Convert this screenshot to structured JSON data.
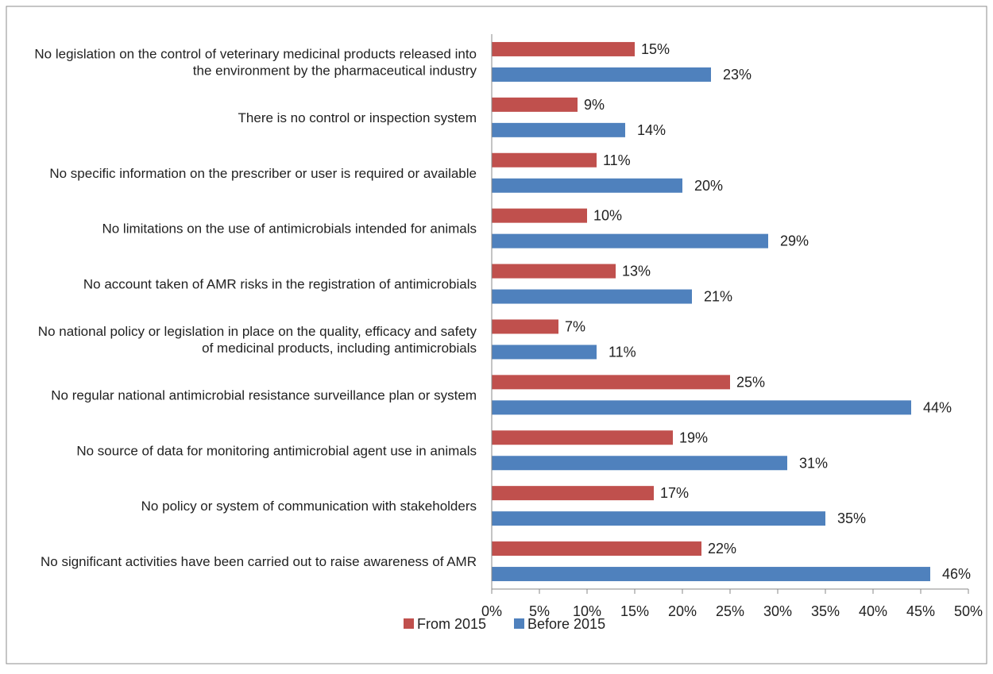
{
  "colors": {
    "from_2015": "#c0504d",
    "before_2015": "#4f81bd",
    "axis": "#888888",
    "frame": "#8c8c8c"
  },
  "chart_data": {
    "type": "bar",
    "orientation": "horizontal",
    "title": "",
    "xlabel": "",
    "ylabel": "",
    "xlim": [
      0,
      50
    ],
    "x_tick_labels": [
      "0%",
      "5%",
      "10%",
      "15%",
      "20%",
      "25%",
      "30%",
      "35%",
      "40%",
      "45%",
      "50%"
    ],
    "grid": false,
    "legend_position": "bottom",
    "categories": [
      [
        "No legislation on the control of veterinary medicinal products released into",
        "the environment by the pharmaceutical industry"
      ],
      [
        "There is no control or inspection system"
      ],
      [
        "No specific information on the prescriber or user is required or available"
      ],
      [
        "No limitations on the use of antimicrobials intended for animals"
      ],
      [
        "No account taken of AMR risks in the registration of antimicrobials"
      ],
      [
        "No national policy or legislation in place on the quality, efficacy and safety",
        "of medicinal products, including antimicrobials"
      ],
      [
        "No regular national antimicrobial resistance surveillance plan or system"
      ],
      [
        "No source of data for monitoring antimicrobial agent use in animals"
      ],
      [
        "No policy or system of communication with stakeholders"
      ],
      [
        "No significant activities have been carried out to raise awareness of AMR"
      ]
    ],
    "series": [
      {
        "name": "From 2015",
        "values": [
          15,
          9,
          11,
          10,
          13,
          7,
          25,
          19,
          17,
          22
        ],
        "labels": [
          "15%",
          "9%",
          "11%",
          "10%",
          "13%",
          "7%",
          "25%",
          "19%",
          "17%",
          "22%"
        ]
      },
      {
        "name": "Before 2015",
        "values": [
          23,
          14,
          20,
          29,
          21,
          11,
          44,
          31,
          35,
          46
        ],
        "labels": [
          "23%",
          "14%",
          "20%",
          "29%",
          "21%",
          "11%",
          "44%",
          "31%",
          "35%",
          "46%"
        ]
      }
    ]
  }
}
